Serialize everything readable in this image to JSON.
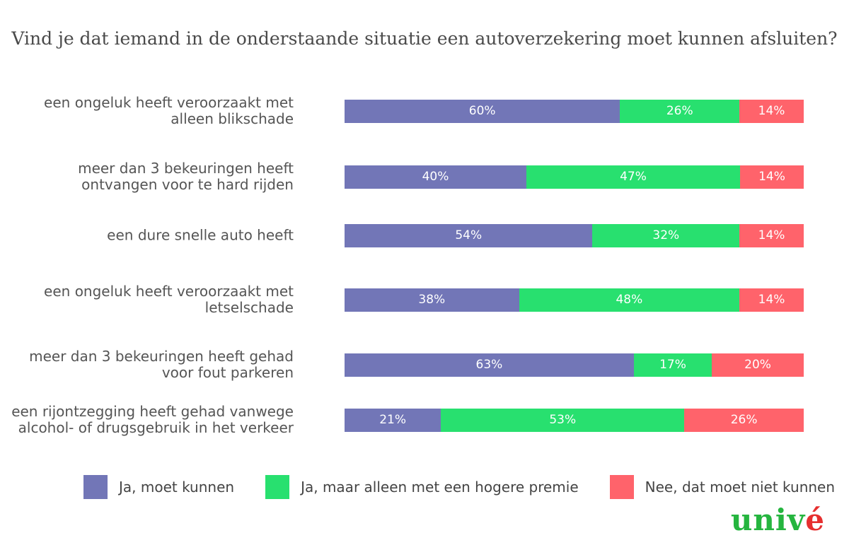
{
  "chart_data": {
    "type": "bar",
    "orientation": "horizontal",
    "stacked": true,
    "percent": true,
    "title": "Vind je dat iemand in de onderstaande situatie een autoverzekering moet kunnen afsluiten?",
    "categories": [
      [
        "een ongeluk heeft veroorzaakt met",
        "alleen blikschade"
      ],
      [
        "meer dan 3 bekeuringen heeft",
        "ontvangen voor te hard rijden"
      ],
      [
        "een dure snelle auto heeft"
      ],
      [
        "een ongeluk heeft veroorzaakt met",
        "letselschade"
      ],
      [
        "meer dan 3 bekeuringen heeft gehad",
        "voor fout parkeren"
      ],
      [
        "een rijontzegging heeft gehad vanwege",
        "alcohol- of drugsgebruik in het verkeer"
      ]
    ],
    "series": [
      {
        "name": "Ja, moet kunnen",
        "color": "#7276b7",
        "values": [
          60,
          40,
          54,
          38,
          63,
          21
        ]
      },
      {
        "name": "Ja, maar alleen met een hogere premie",
        "color": "#28e06f",
        "values": [
          26,
          47,
          32,
          48,
          17,
          53
        ]
      },
      {
        "name": "Nee, dat moet niet kunnen",
        "color": "#ff636b",
        "values": [
          14,
          14,
          14,
          14,
          20,
          26
        ]
      }
    ],
    "value_suffix": "%",
    "legend_position": "bottom"
  },
  "logo": {
    "text_main": "univ",
    "text_accent": "é"
  }
}
